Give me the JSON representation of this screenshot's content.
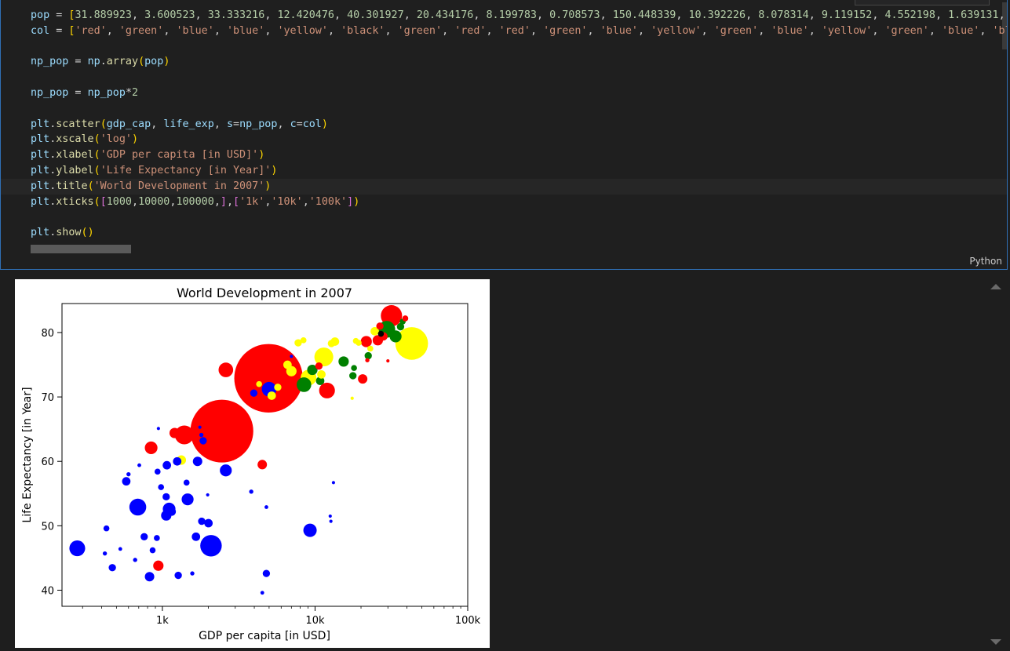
{
  "code_lines": [
    "pop = [31.889923, 3.600523, 33.333216, 12.420476, 40.301927, 20.434176, 8.199783, 0.708573, 150.448339, 10.392226, 8.078314, 9.119152, 4.552198, 1.639131, 1",
    "col = ['red', 'green', 'blue', 'blue', 'yellow', 'black', 'green', 'red', 'red', 'green', 'blue', 'yellow', 'green', 'blue', 'yellow', 'green', 'blue', 'blu",
    "",
    "np_pop = np.array(pop)",
    "",
    "np_pop = np_pop*2",
    "",
    "plt.scatter(gdp_cap, life_exp, s=np_pop, c=col)",
    "plt.xscale('log')",
    "plt.xlabel('GDP per capita [in USD]')",
    "plt.ylabel('Life Expectancy [in Year]')",
    "plt.title('World Development in 2007')",
    "plt.xticks([1000,10000,100000,],['1k','10k','100k'])",
    "",
    "plt.show()"
  ],
  "language_label": "Python",
  "chart_data": {
    "type": "scatter",
    "title": "World Development in 2007",
    "xlabel": "GDP per capita [in USD]",
    "ylabel": "Life Expectancy [in Year]",
    "xscale": "log",
    "xlim": [
      220,
      100000
    ],
    "ylim": [
      37.5,
      84.5
    ],
    "xticks": [
      1000,
      10000,
      100000
    ],
    "xtick_labels": [
      "1k",
      "10k",
      "100k"
    ],
    "yticks": [
      40,
      50,
      60,
      70,
      80
    ],
    "ytick_labels": [
      "40",
      "50",
      "60",
      "70",
      "80"
    ],
    "grid": false,
    "colors": {
      "red": "#ff0000",
      "green": "#008000",
      "blue": "#0000ff",
      "yellow": "#ffff00",
      "black": "#000000"
    },
    "points": [
      {
        "x": 4959,
        "y": 72.9,
        "s": 2640,
        "c": "red"
      },
      {
        "x": 2452,
        "y": 64.7,
        "s": 2220,
        "c": "red"
      },
      {
        "x": 42951,
        "y": 78.3,
        "s": 600,
        "c": "yellow"
      },
      {
        "x": 31656,
        "y": 82.6,
        "s": 254,
        "c": "red"
      },
      {
        "x": 11977,
        "y": 71.0,
        "s": 140,
        "c": "red"
      },
      {
        "x": 2605,
        "y": 74.2,
        "s": 120,
        "c": "red"
      },
      {
        "x": 1392,
        "y": 64.1,
        "s": 200,
        "c": "red"
      },
      {
        "x": 11415,
        "y": 76.2,
        "s": 200,
        "c": "yellow"
      },
      {
        "x": 9066,
        "y": 73.0,
        "s": 140,
        "c": "yellow"
      },
      {
        "x": 8458,
        "y": 71.9,
        "s": 120,
        "c": "green"
      },
      {
        "x": 29477,
        "y": 80.5,
        "s": 160,
        "c": "green"
      },
      {
        "x": 25768,
        "y": 78.8,
        "s": 60,
        "c": "red"
      },
      {
        "x": 33692,
        "y": 79.4,
        "s": 80,
        "c": "green"
      },
      {
        "x": 21655,
        "y": 78.6,
        "s": 70,
        "c": "red"
      },
      {
        "x": 15390,
        "y": 75.5,
        "s": 60,
        "c": "green"
      },
      {
        "x": 20510,
        "y": 72.8,
        "s": 50,
        "c": "red"
      },
      {
        "x": 5000,
        "y": 71.2,
        "s": 120,
        "c": "blue"
      },
      {
        "x": 1700,
        "y": 60.0,
        "s": 50,
        "c": "blue"
      },
      {
        "x": 844,
        "y": 62.1,
        "s": 90,
        "c": "red"
      },
      {
        "x": 1203,
        "y": 64.4,
        "s": 60,
        "c": "red"
      },
      {
        "x": 941,
        "y": 43.8,
        "s": 60,
        "c": "red"
      },
      {
        "x": 4510,
        "y": 59.5,
        "s": 50,
        "c": "red"
      },
      {
        "x": 1850,
        "y": 63.2,
        "s": 30,
        "c": "blue"
      },
      {
        "x": 2603,
        "y": 58.6,
        "s": 80,
        "c": "blue"
      },
      {
        "x": 1330,
        "y": 60.2,
        "s": 50,
        "c": "yellow"
      },
      {
        "x": 1250,
        "y": 60.0,
        "s": 40,
        "c": "blue"
      },
      {
        "x": 1070,
        "y": 59.4,
        "s": 40,
        "c": "blue"
      },
      {
        "x": 930,
        "y": 58.4,
        "s": 20,
        "c": "blue"
      },
      {
        "x": 690,
        "y": 52.9,
        "s": 160,
        "c": "blue"
      },
      {
        "x": 2082,
        "y": 46.9,
        "s": 260,
        "c": "blue"
      },
      {
        "x": 277,
        "y": 46.5,
        "s": 140,
        "c": "blue"
      },
      {
        "x": 1107,
        "y": 52.6,
        "s": 90,
        "c": "blue"
      },
      {
        "x": 1463,
        "y": 54.1,
        "s": 80,
        "c": "blue"
      },
      {
        "x": 1060,
        "y": 51.6,
        "s": 60,
        "c": "blue"
      },
      {
        "x": 9270,
        "y": 49.3,
        "s": 100,
        "c": "blue"
      },
      {
        "x": 580,
        "y": 56.9,
        "s": 40,
        "c": "blue"
      },
      {
        "x": 1150,
        "y": 52.2,
        "s": 40,
        "c": "blue"
      },
      {
        "x": 1059,
        "y": 54.5,
        "s": 30,
        "c": "blue"
      },
      {
        "x": 1810,
        "y": 50.7,
        "s": 30,
        "c": "blue"
      },
      {
        "x": 2004,
        "y": 50.4,
        "s": 40,
        "c": "blue"
      },
      {
        "x": 1660,
        "y": 48.3,
        "s": 40,
        "c": "blue"
      },
      {
        "x": 760,
        "y": 48.3,
        "s": 30,
        "c": "blue"
      },
      {
        "x": 920,
        "y": 48.1,
        "s": 20,
        "c": "blue"
      },
      {
        "x": 430,
        "y": 49.6,
        "s": 20,
        "c": "blue"
      },
      {
        "x": 863,
        "y": 46.2,
        "s": 20,
        "c": "blue"
      },
      {
        "x": 824,
        "y": 42.1,
        "s": 50,
        "c": "blue"
      },
      {
        "x": 470,
        "y": 43.5,
        "s": 30,
        "c": "blue"
      },
      {
        "x": 1270,
        "y": 42.3,
        "s": 30,
        "c": "blue"
      },
      {
        "x": 4797,
        "y": 42.6,
        "s": 30,
        "c": "blue"
      },
      {
        "x": 3820,
        "y": 55.3,
        "s": 10,
        "c": "blue"
      },
      {
        "x": 1440,
        "y": 56.7,
        "s": 20,
        "c": "blue"
      },
      {
        "x": 980,
        "y": 56.0,
        "s": 20,
        "c": "blue"
      },
      {
        "x": 600,
        "y": 58.0,
        "s": 10,
        "c": "blue"
      },
      {
        "x": 706,
        "y": 59.4,
        "s": 8,
        "c": "blue"
      },
      {
        "x": 420,
        "y": 45.7,
        "s": 10,
        "c": "blue"
      },
      {
        "x": 530,
        "y": 46.4,
        "s": 8,
        "c": "blue"
      },
      {
        "x": 663,
        "y": 44.7,
        "s": 10,
        "c": "blue"
      },
      {
        "x": 1570,
        "y": 42.6,
        "s": 10,
        "c": "blue"
      },
      {
        "x": 4513,
        "y": 39.6,
        "s": 8,
        "c": "blue"
      },
      {
        "x": 4800,
        "y": 52.9,
        "s": 8,
        "c": "blue"
      },
      {
        "x": 12570,
        "y": 51.5,
        "s": 6,
        "c": "blue"
      },
      {
        "x": 12700,
        "y": 50.7,
        "s": 6,
        "c": "blue"
      },
      {
        "x": 13200,
        "y": 56.7,
        "s": 6,
        "c": "blue"
      },
      {
        "x": 1980,
        "y": 54.8,
        "s": 6,
        "c": "blue"
      },
      {
        "x": 942,
        "y": 65.1,
        "s": 6,
        "c": "blue"
      },
      {
        "x": 1800,
        "y": 64.1,
        "s": 10,
        "c": "blue"
      },
      {
        "x": 3970,
        "y": 70.6,
        "s": 30,
        "c": "blue"
      },
      {
        "x": 5700,
        "y": 71.5,
        "s": 30,
        "c": "yellow"
      },
      {
        "x": 5200,
        "y": 70.2,
        "s": 40,
        "c": "yellow"
      },
      {
        "x": 4300,
        "y": 72.0,
        "s": 20,
        "c": "yellow"
      },
      {
        "x": 6600,
        "y": 75.0,
        "s": 40,
        "c": "yellow"
      },
      {
        "x": 7000,
        "y": 74.0,
        "s": 60,
        "c": "yellow"
      },
      {
        "x": 9600,
        "y": 74.2,
        "s": 60,
        "c": "green"
      },
      {
        "x": 10800,
        "y": 72.5,
        "s": 40,
        "c": "green"
      },
      {
        "x": 11000,
        "y": 73.5,
        "s": 40,
        "c": "yellow"
      },
      {
        "x": 12800,
        "y": 78.3,
        "s": 30,
        "c": "yellow"
      },
      {
        "x": 13500,
        "y": 78.6,
        "s": 40,
        "c": "yellow"
      },
      {
        "x": 17700,
        "y": 73.3,
        "s": 30,
        "c": "green"
      },
      {
        "x": 18000,
        "y": 74.5,
        "s": 20,
        "c": "green"
      },
      {
        "x": 18500,
        "y": 78.7,
        "s": 20,
        "c": "yellow"
      },
      {
        "x": 19300,
        "y": 78.4,
        "s": 20,
        "c": "yellow"
      },
      {
        "x": 23000,
        "y": 77.5,
        "s": 20,
        "c": "yellow"
      },
      {
        "x": 22300,
        "y": 76.4,
        "s": 30,
        "c": "green"
      },
      {
        "x": 22000,
        "y": 75.7,
        "s": 10,
        "c": "red"
      },
      {
        "x": 24600,
        "y": 80.2,
        "s": 40,
        "c": "yellow"
      },
      {
        "x": 26600,
        "y": 81.0,
        "s": 30,
        "c": "red"
      },
      {
        "x": 28000,
        "y": 79.4,
        "s": 40,
        "c": "red"
      },
      {
        "x": 27000,
        "y": 79.8,
        "s": 20,
        "c": "black"
      },
      {
        "x": 36300,
        "y": 80.9,
        "s": 30,
        "c": "green"
      },
      {
        "x": 37500,
        "y": 81.7,
        "s": 20,
        "c": "green"
      },
      {
        "x": 39000,
        "y": 82.2,
        "s": 20,
        "c": "red"
      },
      {
        "x": 30000,
        "y": 75.6,
        "s": 6,
        "c": "red"
      },
      {
        "x": 17500,
        "y": 69.8,
        "s": 6,
        "c": "yellow"
      },
      {
        "x": 7750,
        "y": 78.4,
        "s": 30,
        "c": "yellow"
      },
      {
        "x": 8400,
        "y": 78.8,
        "s": 20,
        "c": "yellow"
      },
      {
        "x": 10600,
        "y": 74.8,
        "s": 30,
        "c": "red"
      },
      {
        "x": 1760,
        "y": 65.3,
        "s": 6,
        "c": "blue"
      },
      {
        "x": 7000,
        "y": 76.3,
        "s": 6,
        "c": "blue"
      }
    ]
  }
}
